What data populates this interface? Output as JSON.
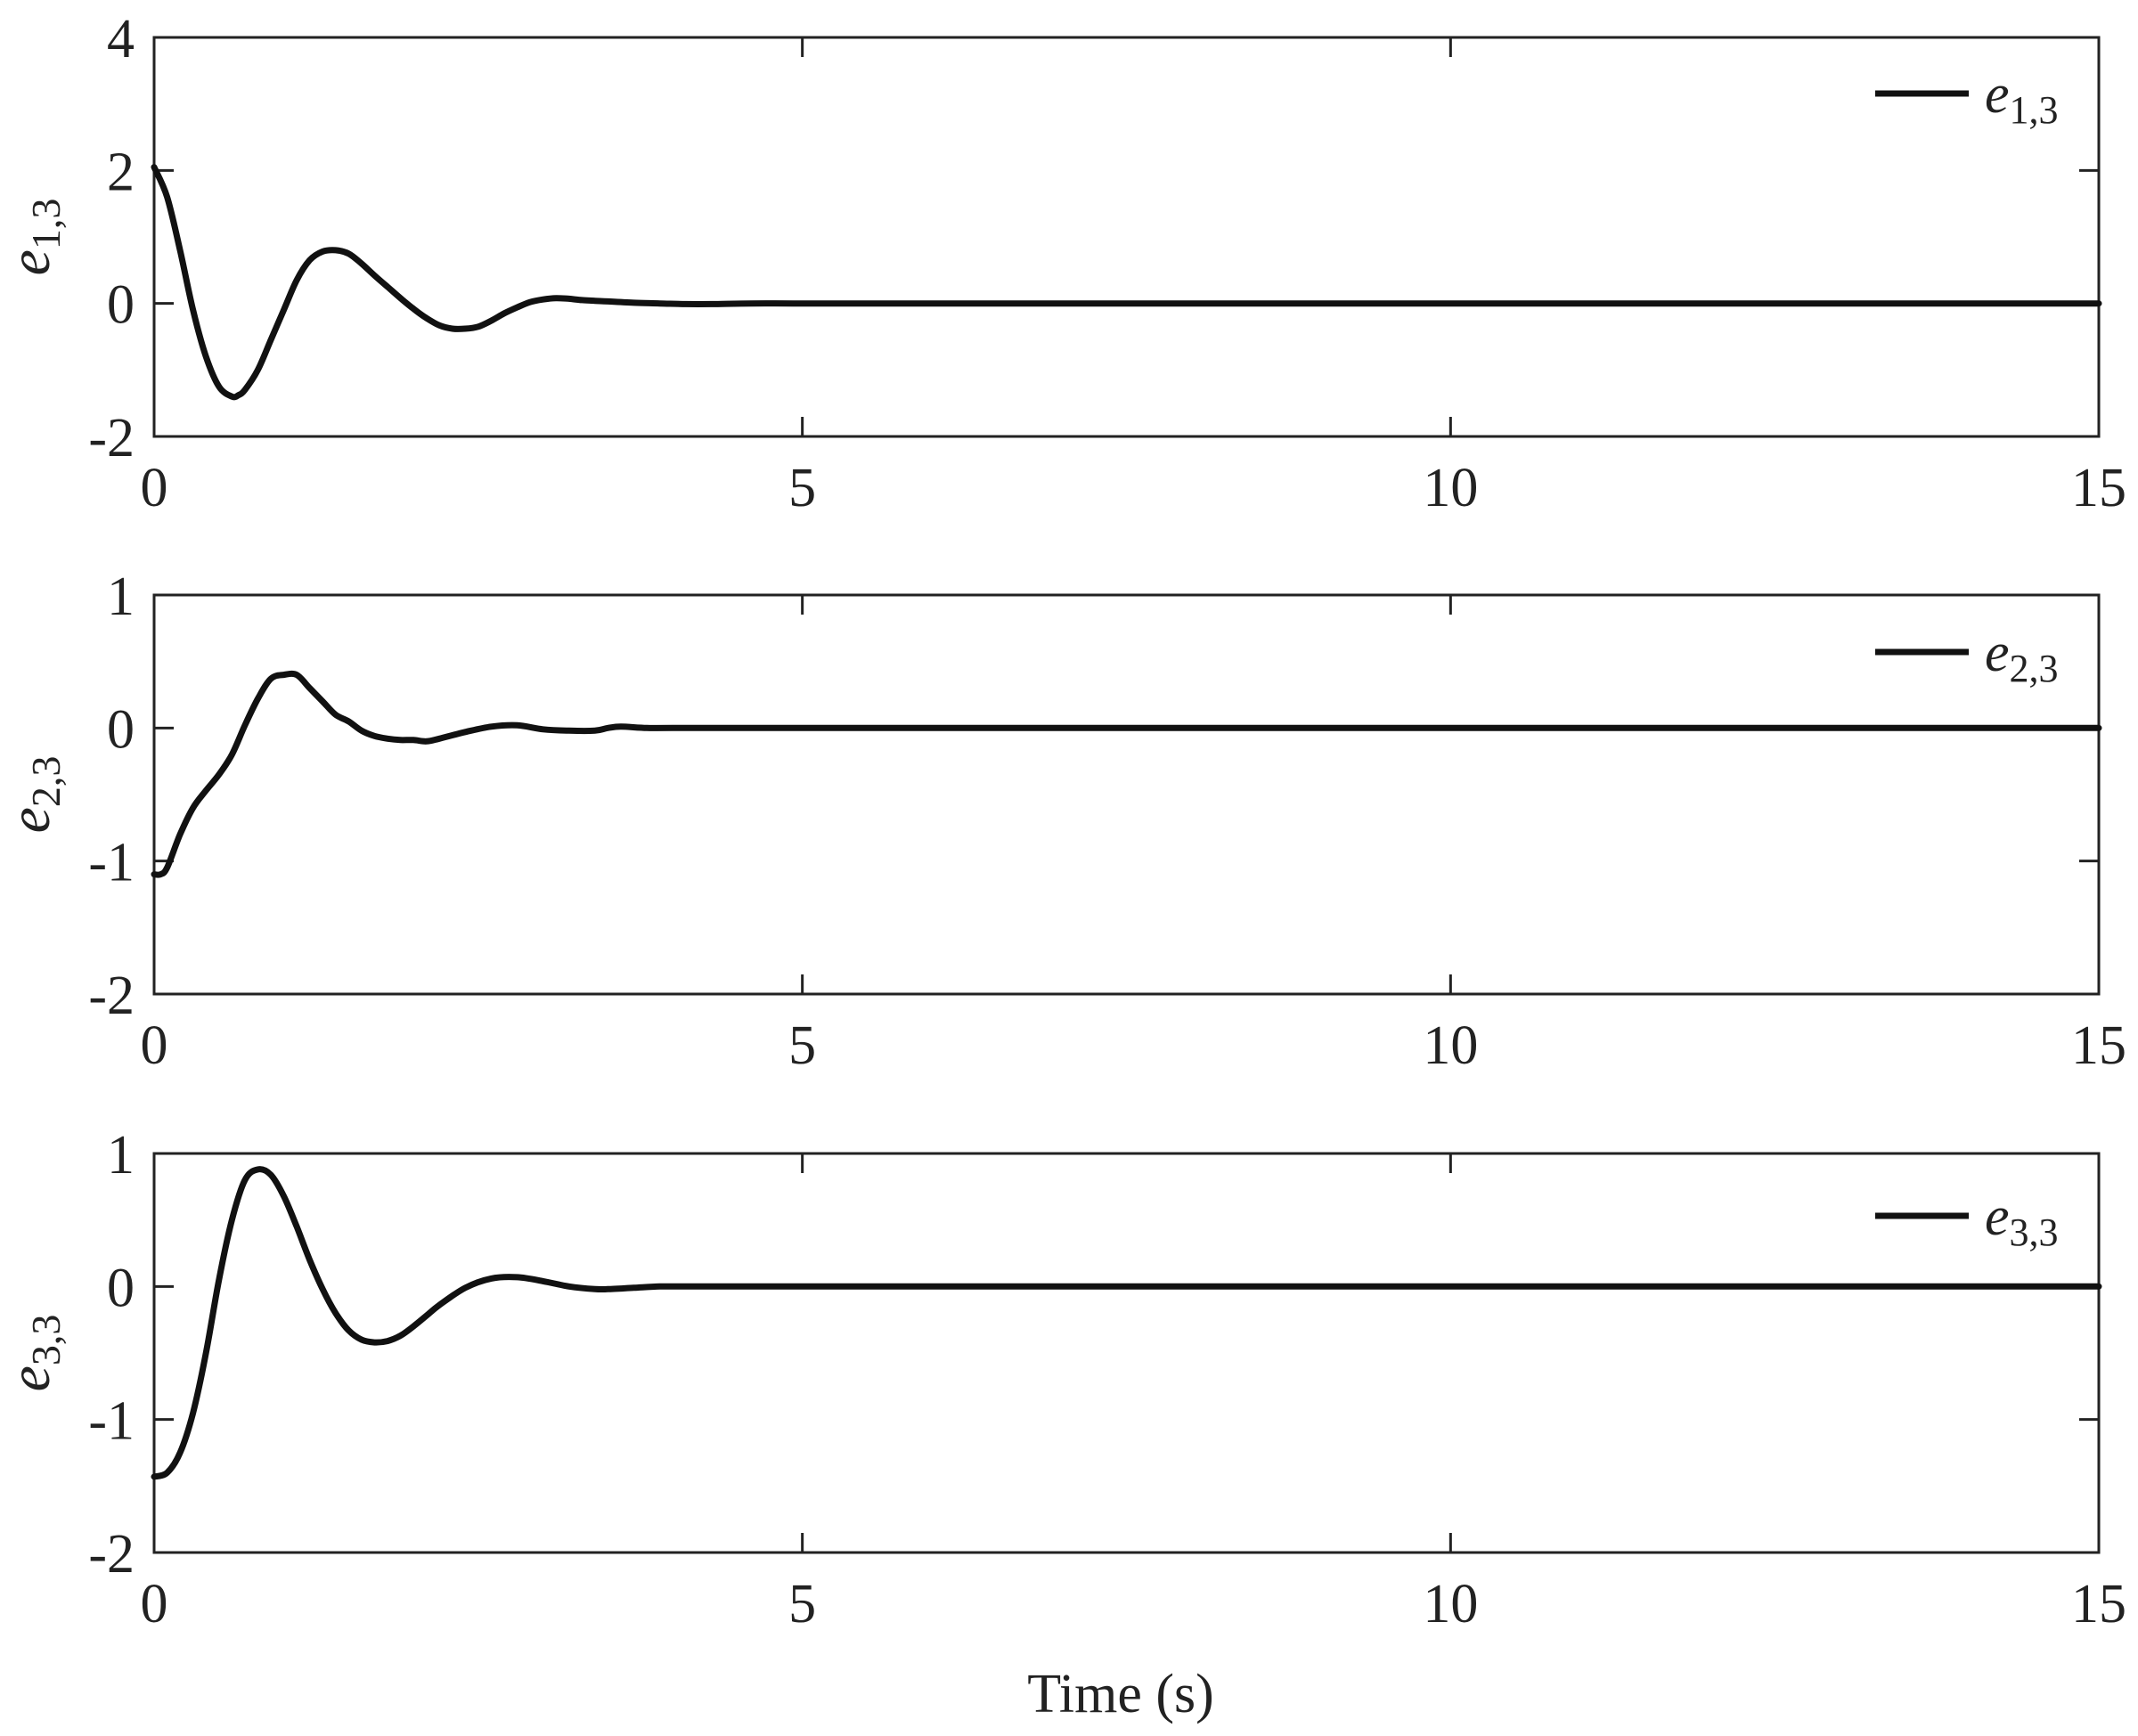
{
  "colors": {
    "line": "#111111",
    "axis": "#222222",
    "background": "#ffffff"
  },
  "chart_data": [
    {
      "type": "line",
      "xlabel": "",
      "ylabel": {
        "base": "e",
        "sub": "1,3"
      },
      "xlim": [
        0,
        15
      ],
      "ylim": [
        -2,
        4
      ],
      "xticks": [
        0,
        5,
        10,
        15
      ],
      "yticks": [
        -2,
        0,
        2,
        4
      ],
      "xtick_labels": [
        "0",
        "5",
        "10",
        "15"
      ],
      "ytick_labels": [
        "-2",
        "0",
        "2",
        "4"
      ],
      "grid": false,
      "legend_position": "top-right",
      "series": [
        {
          "name": {
            "base": "e",
            "sub": "1,3"
          },
          "x": [
            0,
            0.1,
            0.2,
            0.3,
            0.4,
            0.5,
            0.6,
            0.65,
            0.7,
            0.8,
            0.9,
            1.0,
            1.1,
            1.2,
            1.3,
            1.4,
            1.5,
            1.6,
            1.7,
            1.8,
            1.9,
            2.0,
            2.1,
            2.2,
            2.3,
            2.4,
            2.5,
            2.6,
            2.7,
            2.8,
            2.9,
            3.0,
            3.1,
            3.2,
            3.3,
            3.4,
            3.5,
            3.7,
            3.9,
            4.1,
            4.3,
            4.6,
            5.0,
            6.0,
            8.0,
            10.0,
            12.0,
            15.0
          ],
          "y": [
            2.05,
            1.6,
            0.8,
            -0.1,
            -0.8,
            -1.25,
            -1.4,
            -1.38,
            -1.3,
            -1.0,
            -0.55,
            -0.1,
            0.35,
            0.65,
            0.78,
            0.8,
            0.75,
            0.6,
            0.42,
            0.25,
            0.08,
            -0.08,
            -0.22,
            -0.33,
            -0.38,
            -0.38,
            -0.35,
            -0.26,
            -0.15,
            -0.06,
            0.02,
            0.06,
            0.08,
            0.07,
            0.05,
            0.04,
            0.03,
            0.01,
            0.0,
            -0.01,
            -0.01,
            0.0,
            0.0,
            0.0,
            0.0,
            0.0,
            0.0,
            0.0
          ]
        }
      ]
    },
    {
      "type": "line",
      "xlabel": "",
      "ylabel": {
        "base": "e",
        "sub": "2,3"
      },
      "xlim": [
        0,
        15
      ],
      "ylim": [
        -2,
        1
      ],
      "xticks": [
        0,
        5,
        10,
        15
      ],
      "yticks": [
        -2,
        -1,
        0,
        1
      ],
      "xtick_labels": [
        "0",
        "5",
        "10",
        "15"
      ],
      "ytick_labels": [
        "-2",
        "-1",
        "0",
        "1"
      ],
      "grid": false,
      "legend_position": "top-right",
      "series": [
        {
          "name": {
            "base": "e",
            "sub": "2,3"
          },
          "x": [
            0,
            0.05,
            0.1,
            0.2,
            0.3,
            0.4,
            0.5,
            0.6,
            0.7,
            0.8,
            0.9,
            1.0,
            1.1,
            1.2,
            1.3,
            1.4,
            1.5,
            1.6,
            1.7,
            1.8,
            1.9,
            2.0,
            2.1,
            2.2,
            2.4,
            2.6,
            2.8,
            3.0,
            3.2,
            3.4,
            3.5,
            3.6,
            3.8,
            4.0,
            5.0,
            8.0,
            12.0,
            15.0
          ],
          "y": [
            -1.1,
            -1.1,
            -1.05,
            -0.8,
            -0.6,
            -0.47,
            -0.35,
            -0.2,
            0.02,
            0.22,
            0.37,
            0.4,
            0.4,
            0.3,
            0.2,
            0.1,
            0.05,
            -0.02,
            -0.06,
            -0.08,
            -0.09,
            -0.09,
            -0.1,
            -0.08,
            -0.03,
            0.01,
            0.02,
            -0.01,
            -0.02,
            -0.02,
            0.0,
            0.01,
            0.0,
            0.0,
            0.0,
            0.0,
            0.0,
            0.0
          ]
        }
      ]
    },
    {
      "type": "line",
      "xlabel": "Time (s)",
      "ylabel": {
        "base": "e",
        "sub": "3,3"
      },
      "xlim": [
        0,
        15
      ],
      "ylim": [
        -2,
        1
      ],
      "xticks": [
        0,
        5,
        10,
        15
      ],
      "yticks": [
        -2,
        -1,
        0,
        1
      ],
      "xtick_labels": [
        "0",
        "5",
        "10",
        "15"
      ],
      "ytick_labels": [
        "-2",
        "-1",
        "0",
        "1"
      ],
      "grid": false,
      "legend_position": "top-right",
      "series": [
        {
          "name": {
            "base": "e",
            "sub": "3,3"
          },
          "x": [
            0,
            0.1,
            0.2,
            0.3,
            0.4,
            0.5,
            0.6,
            0.7,
            0.8,
            0.9,
            1.0,
            1.1,
            1.2,
            1.3,
            1.4,
            1.5,
            1.6,
            1.7,
            1.8,
            1.9,
            2.0,
            2.1,
            2.2,
            2.4,
            2.6,
            2.8,
            3.0,
            3.2,
            3.4,
            3.5,
            3.7,
            3.9,
            4.1,
            4.5,
            5.0,
            8.0,
            12.0,
            15.0
          ],
          "y": [
            -1.43,
            -1.4,
            -1.25,
            -0.95,
            -0.5,
            0.05,
            0.5,
            0.8,
            0.88,
            0.84,
            0.68,
            0.45,
            0.2,
            -0.02,
            -0.2,
            -0.33,
            -0.4,
            -0.42,
            -0.41,
            -0.37,
            -0.3,
            -0.22,
            -0.14,
            -0.01,
            0.06,
            0.07,
            0.04,
            0.0,
            -0.02,
            -0.02,
            -0.01,
            0.0,
            0.0,
            0.0,
            0.0,
            0.0,
            0.0,
            0.0
          ]
        }
      ]
    }
  ]
}
